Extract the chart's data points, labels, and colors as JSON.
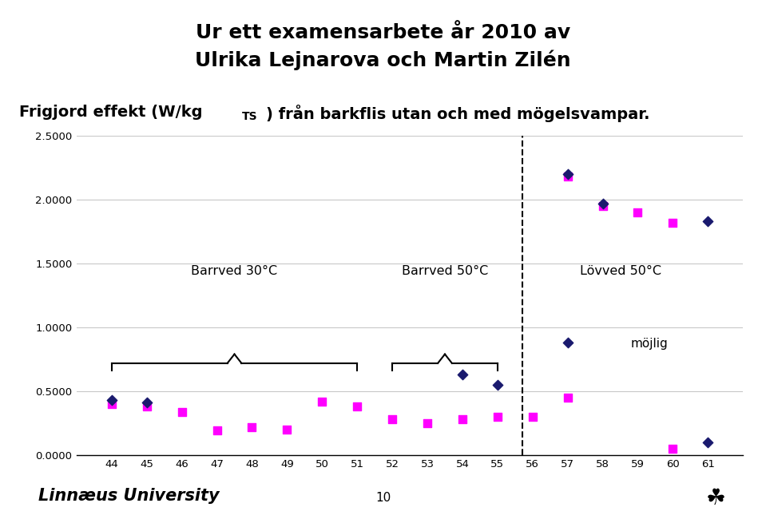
{
  "title_line1": "Ur ett examensarbete år 2010 av",
  "title_line2": "Ulrika Lejnarova och Martin Zilén",
  "subtitle_pre": "Frigjord effekt (W/kg",
  "subtitle_sub": "TS",
  "subtitle_post": ") från barkflis utan och med mögelsvampar.",
  "ylim": [
    0.0,
    2.5
  ],
  "ytick_vals": [
    0.0,
    0.5,
    1.0,
    1.5,
    2.0,
    2.5
  ],
  "ytick_labels": [
    "0.0000",
    "0.5000",
    "1.0000",
    "1.5000",
    "2.0000",
    "2.5000"
  ],
  "xtick_vals": [
    44,
    45,
    46,
    47,
    48,
    49,
    50,
    51,
    52,
    53,
    54,
    55,
    56,
    57,
    58,
    59,
    60,
    61
  ],
  "xlim": [
    43.0,
    62.0
  ],
  "dashed_vline_x": 55.7,
  "magenta_color": "#FF00FF",
  "navy_color": "#1A1A6E",
  "grid_color": "#C8C8C8",
  "magenta_points": [
    [
      44,
      0.4
    ],
    [
      45,
      0.38
    ],
    [
      46,
      0.34
    ],
    [
      47,
      0.19
    ],
    [
      48,
      0.22
    ],
    [
      49,
      0.2
    ],
    [
      50,
      0.42
    ],
    [
      51,
      0.38
    ],
    [
      52,
      0.28
    ],
    [
      53,
      0.25
    ],
    [
      54,
      0.28
    ],
    [
      55,
      0.3
    ],
    [
      56,
      0.3
    ],
    [
      57,
      0.45
    ],
    [
      57,
      2.18
    ],
    [
      58,
      1.95
    ],
    [
      59,
      1.9
    ],
    [
      60,
      1.82
    ],
    [
      60,
      0.05
    ]
  ],
  "navy_points": [
    [
      44,
      0.43
    ],
    [
      45,
      0.41
    ],
    [
      54,
      0.63
    ],
    [
      55,
      0.55
    ],
    [
      57,
      0.88
    ],
    [
      57,
      2.2
    ],
    [
      58,
      1.97
    ],
    [
      61,
      1.83
    ],
    [
      61,
      0.1
    ]
  ],
  "label_b30": "Barrved 30°C",
  "label_b50": "Barrved 50°C",
  "label_l50": "Lövved 50°C",
  "label_mojlig": "möjlig",
  "footer_page": "10"
}
